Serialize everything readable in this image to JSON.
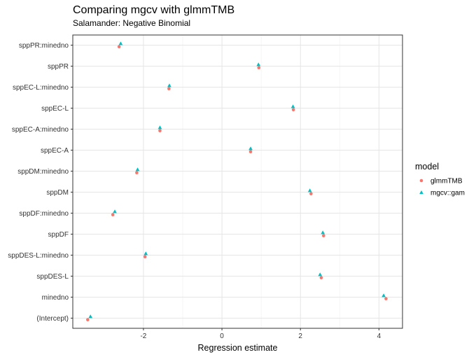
{
  "chart_data": {
    "type": "scatter",
    "title": "Comparing mgcv with glmmTMB",
    "subtitle": "Salamander: Negative Binomial",
    "xlabel": "Regression estimate",
    "ylabel": "",
    "xlim": [
      -3.8,
      4.6
    ],
    "x_ticks": [
      -2,
      0,
      2,
      4
    ],
    "x_tick_labels": [
      "-2",
      "0",
      "2",
      "4"
    ],
    "grid": true,
    "legend_title": "model",
    "legend_position": "right",
    "categories": [
      "sppPR:minedno",
      "sppPR",
      "sppEC-L:minedno",
      "sppEC-L",
      "sppEC-A:minedno",
      "sppEC-A",
      "sppDM:minedno",
      "sppDM",
      "sppDF:minedno",
      "sppDF",
      "sppDES-L:minedno",
      "sppDES-L",
      "minedno",
      "(Intercept)"
    ],
    "series": [
      {
        "name": "glmmTMB",
        "color": "#F8766D",
        "shape": "circle",
        "values": [
          -2.62,
          0.94,
          -1.35,
          1.82,
          -1.58,
          0.73,
          -2.17,
          2.27,
          -2.78,
          2.59,
          -1.96,
          2.53,
          4.18,
          -3.42
        ]
      },
      {
        "name": "mgcv::gam",
        "color": "#00BFC4",
        "shape": "triangle",
        "values": [
          -2.58,
          0.93,
          -1.34,
          1.81,
          -1.58,
          0.73,
          -2.15,
          2.24,
          -2.73,
          2.57,
          -1.94,
          2.5,
          4.12,
          -3.35
        ]
      }
    ]
  }
}
